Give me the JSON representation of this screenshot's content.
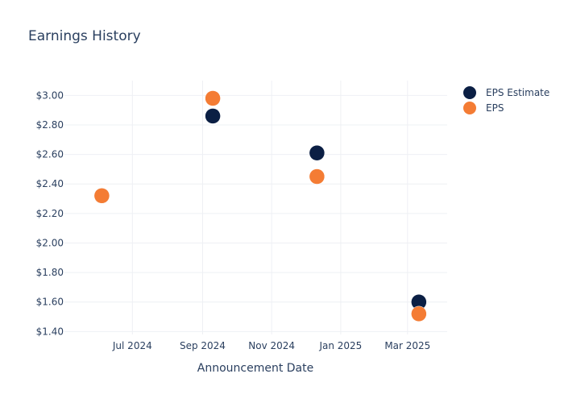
{
  "chart_data": {
    "type": "scatter",
    "title": "Earnings History",
    "xlabel": "Announcement Date",
    "ylabel": "",
    "x_tick_labels": [
      "Jul 2024",
      "Sep 2024",
      "Nov 2024",
      "Jan 2025",
      "Mar 2025"
    ],
    "x_tick_dates": [
      "2024-07-01",
      "2024-09-01",
      "2024-11-01",
      "2025-01-01",
      "2025-03-01"
    ],
    "xlim": [
      "2024-05-02",
      "2025-04-05"
    ],
    "y_tick_labels": [
      "$1.40",
      "$1.60",
      "$1.80",
      "$2.00",
      "$2.20",
      "$2.40",
      "$2.60",
      "$2.80",
      "$3.00"
    ],
    "y_ticks": [
      1.4,
      1.6,
      1.8,
      2.0,
      2.2,
      2.4,
      2.6,
      2.8,
      3.0
    ],
    "ylim": [
      1.38,
      3.1
    ],
    "grid": true,
    "legend_position": "top-right",
    "series": [
      {
        "name": "EPS Estimate",
        "color": "#0b1f44",
        "x": [
          "2024-06-04",
          "2024-09-10",
          "2024-12-11",
          "2025-03-11"
        ],
        "y": [
          2.32,
          2.86,
          2.61,
          1.6
        ]
      },
      {
        "name": "EPS",
        "color": "#f47c34",
        "x": [
          "2024-06-04",
          "2024-09-10",
          "2024-12-11",
          "2025-03-11"
        ],
        "y": [
          2.32,
          2.98,
          2.45,
          1.52
        ]
      }
    ]
  }
}
